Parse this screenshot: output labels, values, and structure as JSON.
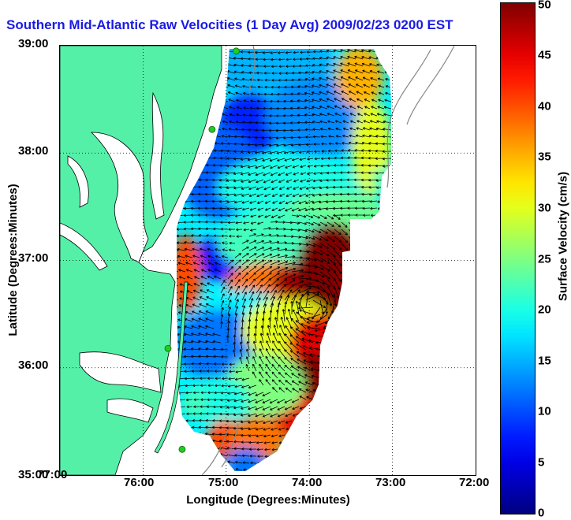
{
  "title": "Southern Mid-Atlantic Raw Velocities (1 Day Avg) 2009/02/23 0200 EST",
  "axes": {
    "xlabel": "Longitude (Degrees:Minutes)",
    "ylabel": "Latitude (Degrees:Minutes)",
    "x_ticks": [
      "77:00",
      "76:00",
      "75:00",
      "74:00",
      "73:00",
      "72:00"
    ],
    "y_ticks": [
      "39:00",
      "38:00",
      "37:00",
      "36:00",
      "35:00"
    ],
    "lon_range": [
      -77,
      -72
    ],
    "lat_range": [
      35,
      39
    ],
    "grid": "dotted"
  },
  "colorbar": {
    "label": "Surface Velocity (cm/s)",
    "ticks": [
      "50",
      "45",
      "40",
      "35",
      "30",
      "25",
      "20",
      "15",
      "10",
      "5",
      "0"
    ],
    "range": [
      0,
      50
    ],
    "colormap": "jet"
  },
  "colors": {
    "land": "#55f0a8",
    "water": "#ffffff",
    "title": "#1a1ae6",
    "coast": "#000000",
    "bathymetry": "#888888",
    "station": "#22cc22"
  },
  "stations": [
    {
      "lon": -74.88,
      "lat": 38.95
    },
    {
      "lon": -75.17,
      "lat": 38.22
    },
    {
      "lon": -75.7,
      "lat": 36.18
    },
    {
      "lon": -75.53,
      "lat": 35.24
    }
  ]
}
